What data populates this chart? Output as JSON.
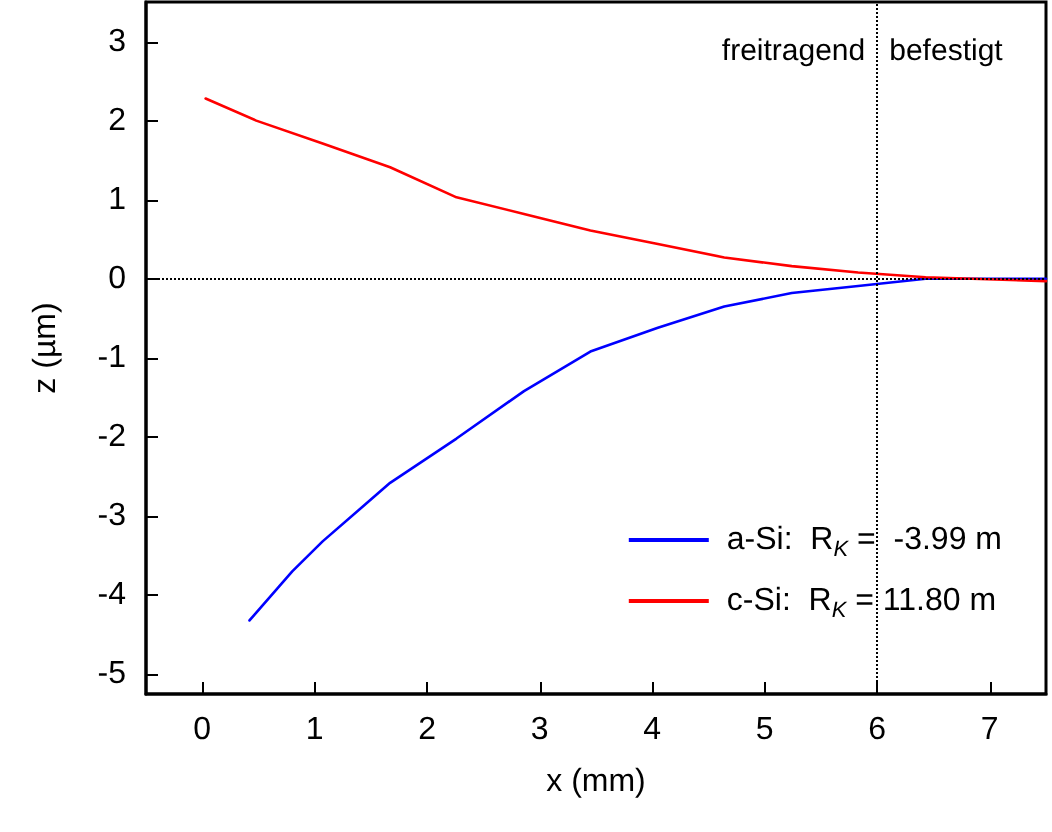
{
  "chart_data": {
    "type": "line",
    "xlabel": "x (mm)",
    "ylabel": "z (µm)",
    "xlim": [
      -0.5,
      7.5
    ],
    "xticks": [
      0,
      1,
      2,
      3,
      4,
      5,
      6,
      7
    ],
    "ylim": [
      -5.25,
      3.5
    ],
    "yticks": [
      -5,
      -4,
      -3,
      -2,
      -1,
      0,
      1,
      2,
      3
    ],
    "grid": false,
    "legend": "bottom right",
    "marker": "none",
    "line_style": "solid",
    "series": [
      {
        "name": "a-Si:  R$_{K}$ =  -3.99 m",
        "color": "#0000ff",
        "x": [
          0.42,
          0.8,
          1.07,
          1.67,
          2.26,
          2.86,
          3.45,
          4.05,
          4.64,
          5.24,
          5.83,
          6.43,
          7.5
        ],
        "values": [
          -4.32,
          -3.7,
          -3.32,
          -2.58,
          -2.02,
          -1.42,
          -0.92,
          -0.62,
          -0.35,
          -0.18,
          -0.09,
          0,
          0
        ]
      },
      {
        "name": "c-Si:  R$_{K}$ = 11.80 m",
        "color": "#ff0000",
        "x": [
          0.03,
          0.48,
          1.07,
          1.67,
          2.26,
          2.86,
          3.45,
          4.05,
          4.64,
          5.24,
          5.83,
          6.43,
          7.5
        ],
        "values": [
          2.28,
          2.0,
          1.71,
          1.41,
          1.03,
          0.82,
          0.61,
          0.44,
          0.27,
          0.16,
          0.08,
          0.02,
          -0.03
        ]
      }
    ],
    "ref_lines": [
      {
        "axis": "x",
        "value": 6,
        "color": "#000000",
        "line_style": "dotted"
      },
      {
        "axis": "y",
        "value": 0,
        "color": "#000000",
        "line_style": "dotted"
      }
    ],
    "annotations": [
      "freitragend",
      "befestigt"
    ]
  }
}
